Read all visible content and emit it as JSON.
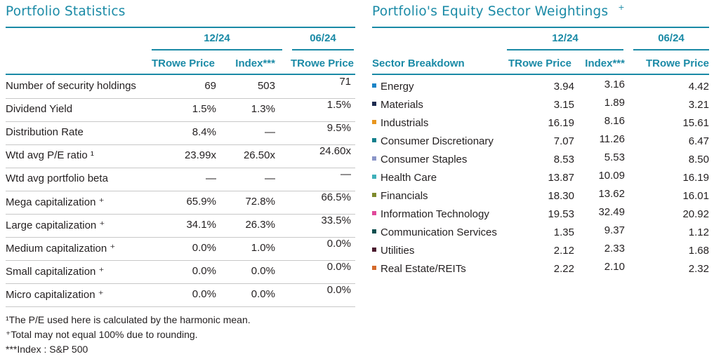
{
  "stats": {
    "title": "Portfolio Statistics",
    "group1": "12/24",
    "group2": "06/24",
    "col1": "TRowe Price",
    "col2": "Index***",
    "col3": "TRowe Price",
    "rows": [
      {
        "label": "Number of security holdings",
        "c1": "69",
        "c2": "503",
        "c3": "71"
      },
      {
        "label": "Dividend Yield",
        "c1": "1.5%",
        "c2": "1.3%",
        "c3": "1.5%"
      },
      {
        "label": "Distribution Rate",
        "c1": "8.4%",
        "c2": "—",
        "c3": "9.5%"
      },
      {
        "label": "Wtd avg P/E ratio ¹",
        "c1": "23.99x",
        "c2": "26.50x",
        "c3": "24.60x"
      },
      {
        "label": "Wtd avg portfolio beta",
        "c1": "—",
        "c2": "—",
        "c3": "—"
      },
      {
        "label": "Mega capitalization ⁺",
        "c1": "65.9%",
        "c2": "72.8%",
        "c3": "66.5%"
      },
      {
        "label": "Large capitalization ⁺",
        "c1": "34.1%",
        "c2": "26.3%",
        "c3": "33.5%"
      },
      {
        "label": "Medium capitalization ⁺",
        "c1": "0.0%",
        "c2": "1.0%",
        "c3": "0.0%"
      },
      {
        "label": "Small capitalization ⁺",
        "c1": "0.0%",
        "c2": "0.0%",
        "c3": "0.0%"
      },
      {
        "label": "Micro capitalization ⁺",
        "c1": "0.0%",
        "c2": "0.0%",
        "c3": "0.0%"
      }
    ],
    "footnotes": [
      "¹The P/E used here is calculated by the harmonic mean.",
      "⁺Total may not equal 100% due to rounding.",
      "***Index : S&P 500"
    ]
  },
  "sectors": {
    "title": "Portfolio's Equity Sector Weightings",
    "title_mark": "+",
    "group1": "12/24",
    "group2": "06/24",
    "col0": "Sector Breakdown",
    "col1": "TRowe Price",
    "col2": "Index***",
    "col3": "TRowe Price",
    "rows": [
      {
        "label": "Energy",
        "color": "#1a84c7",
        "c1": "3.94",
        "c2": "3.16",
        "c3": "4.42"
      },
      {
        "label": "Materials",
        "color": "#1d2b4f",
        "c1": "3.15",
        "c2": "1.89",
        "c3": "3.21"
      },
      {
        "label": "Industrials",
        "color": "#e8961e",
        "c1": "16.19",
        "c2": "8.16",
        "c3": "15.61"
      },
      {
        "label": "Consumer Discretionary",
        "color": "#127f8c",
        "c1": "7.07",
        "c2": "11.26",
        "c3": "6.47"
      },
      {
        "label": "Consumer Staples",
        "color": "#8a95c8",
        "c1": "8.53",
        "c2": "5.53",
        "c3": "8.50"
      },
      {
        "label": "Health Care",
        "color": "#3fb0b9",
        "c1": "13.87",
        "c2": "10.09",
        "c3": "16.19"
      },
      {
        "label": "Financials",
        "color": "#7e8a2d",
        "c1": "18.30",
        "c2": "13.62",
        "c3": "16.01"
      },
      {
        "label": "Information Technology",
        "color": "#e0489a",
        "c1": "19.53",
        "c2": "32.49",
        "c3": "20.92"
      },
      {
        "label": "Communication Services",
        "color": "#0d4f4f",
        "c1": "1.35",
        "c2": "9.37",
        "c3": "1.12"
      },
      {
        "label": "Utilities",
        "color": "#4a1a2e",
        "c1": "2.12",
        "c2": "2.33",
        "c3": "1.68"
      },
      {
        "label": "Real Estate/REITs",
        "color": "#d46a2c",
        "c1": "2.22",
        "c2": "2.10",
        "c3": "2.32"
      }
    ]
  }
}
